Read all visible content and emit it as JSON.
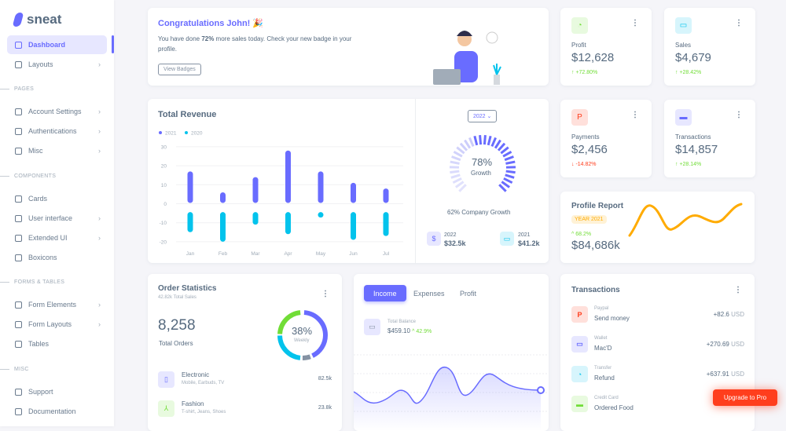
{
  "brand": "sneat",
  "sidebar": {
    "items": [
      {
        "label": "Dashboard",
        "icon": "home-icon",
        "active": true
      },
      {
        "label": "Layouts",
        "icon": "layout-icon",
        "chevron": true
      },
      {
        "label": "Account Settings",
        "icon": "window-icon",
        "chevron": true
      },
      {
        "label": "Authentications",
        "icon": "lock-icon",
        "chevron": true
      },
      {
        "label": "Misc",
        "icon": "cube-icon",
        "chevron": true
      },
      {
        "label": "Cards",
        "icon": "collection-icon"
      },
      {
        "label": "User interface",
        "icon": "box-icon",
        "chevron": true
      },
      {
        "label": "Extended UI",
        "icon": "copy-icon",
        "chevron": true
      },
      {
        "label": "Boxicons",
        "icon": "crown-icon"
      },
      {
        "label": "Form Elements",
        "icon": "form-icon",
        "chevron": true
      },
      {
        "label": "Form Layouts",
        "icon": "form-icon",
        "chevron": true
      },
      {
        "label": "Tables",
        "icon": "table-icon"
      },
      {
        "label": "Support",
        "icon": "support-icon"
      },
      {
        "label": "Documentation",
        "icon": "file-icon"
      }
    ],
    "sections": [
      "PAGES",
      "COMPONENTS",
      "FORMS & TABLES",
      "MISC"
    ]
  },
  "welcome": {
    "title": "Congratulations John! 🎉",
    "text_pre": "You have done ",
    "text_bold": "72%",
    "text_post": " more sales today. Check your new badge in your",
    "text_line2": "profile.",
    "button": "View Badges"
  },
  "stats": [
    {
      "label": "Profit",
      "value": "$12,628",
      "change": "+72.80%",
      "dir": "up",
      "icon": "chart-icon",
      "color": "#71dd37",
      "bg": "#e8fadf"
    },
    {
      "label": "Sales",
      "value": "$4,679",
      "change": "+28.42%",
      "dir": "up",
      "icon": "wallet-icon",
      "color": "#03c3ec",
      "bg": "#d7f5fc"
    },
    {
      "label": "Payments",
      "value": "$2,456",
      "change": "-14.82%",
      "dir": "down",
      "icon": "paypal-icon",
      "color": "#ff3e1d",
      "bg": "#ffe0db"
    },
    {
      "label": "Transactions",
      "value": "$14,857",
      "change": "+28.14%",
      "dir": "up",
      "icon": "credit-card-icon",
      "color": "#696cff",
      "bg": "#e7e7ff"
    }
  ],
  "revenue": {
    "title": "Total Revenue",
    "year_select": "2022",
    "growth_pct": 78,
    "growth_value": "78%",
    "growth_label": "Growth",
    "company_growth": "62% Company Growth",
    "summary": [
      {
        "year": "2022",
        "value": "$32.5k",
        "icon": "dollar-icon"
      },
      {
        "year": "2021",
        "value": "$41.2k",
        "icon": "wallet-icon"
      }
    ]
  },
  "chart_data": {
    "type": "bar",
    "categories": [
      "Jan",
      "Feb",
      "Mar",
      "Apr",
      "May",
      "Jun",
      "Jul"
    ],
    "series": [
      {
        "name": "2021",
        "color": "#696cff",
        "values": [
          17,
          6,
          14,
          28,
          17,
          11,
          8
        ]
      },
      {
        "name": "2020",
        "color": "#03c3ec",
        "values": [
          -15,
          -20,
          -11,
          -16,
          -5,
          -19,
          -17
        ]
      }
    ],
    "yticks": [
      30,
      20,
      10,
      0,
      -10,
      -20
    ],
    "ylim": [
      -20,
      30
    ],
    "grid": true,
    "legend": "top-left"
  },
  "profile_report": {
    "title": "Profile Report",
    "badge": "YEAR 2021",
    "change": "68.2%",
    "value": "$84,686k"
  },
  "orders": {
    "title": "Order Statistics",
    "subtitle": "42.82k Total Sales",
    "count": "8,258",
    "count_label": "Total Orders",
    "donut_value": "38%",
    "donut_label": "Weekly",
    "items": [
      {
        "name": "Electronic",
        "desc": "Mobile, Earbuds, TV",
        "value": "82.5k",
        "icon": "mobile-icon"
      },
      {
        "name": "Fashion",
        "desc": "T-shirt, Jeans, Shoes",
        "value": "23.8k",
        "icon": "closet-icon"
      }
    ]
  },
  "income": {
    "tabs": [
      "Income",
      "Expenses",
      "Profit"
    ],
    "balance_label": "Total Balance",
    "balance": "$459.10",
    "change": "42.9%"
  },
  "transactions": {
    "title": "Transactions",
    "items": [
      {
        "type": "Paypal",
        "name": "Send money",
        "amount": "+82.6",
        "currency": "USD",
        "icon": "paypal-icon",
        "color": "#ff3e1d",
        "bg": "#ffe0db"
      },
      {
        "type": "Wallet",
        "name": "Mac'D",
        "amount": "+270.69",
        "currency": "USD",
        "icon": "wallet-icon",
        "color": "#696cff",
        "bg": "#e7e7ff"
      },
      {
        "type": "Transfer",
        "name": "Refund",
        "amount": "+637.91",
        "currency": "USD",
        "icon": "chart-icon",
        "color": "#03c3ec",
        "bg": "#d7f5fc"
      },
      {
        "type": "Credit Card",
        "name": "Ordered Food",
        "amount": "-8",
        "currency": "",
        "icon": "credit-card-icon",
        "color": "#71dd37",
        "bg": "#e8fadf"
      }
    ]
  },
  "upgrade": "Upgrade to Pro"
}
